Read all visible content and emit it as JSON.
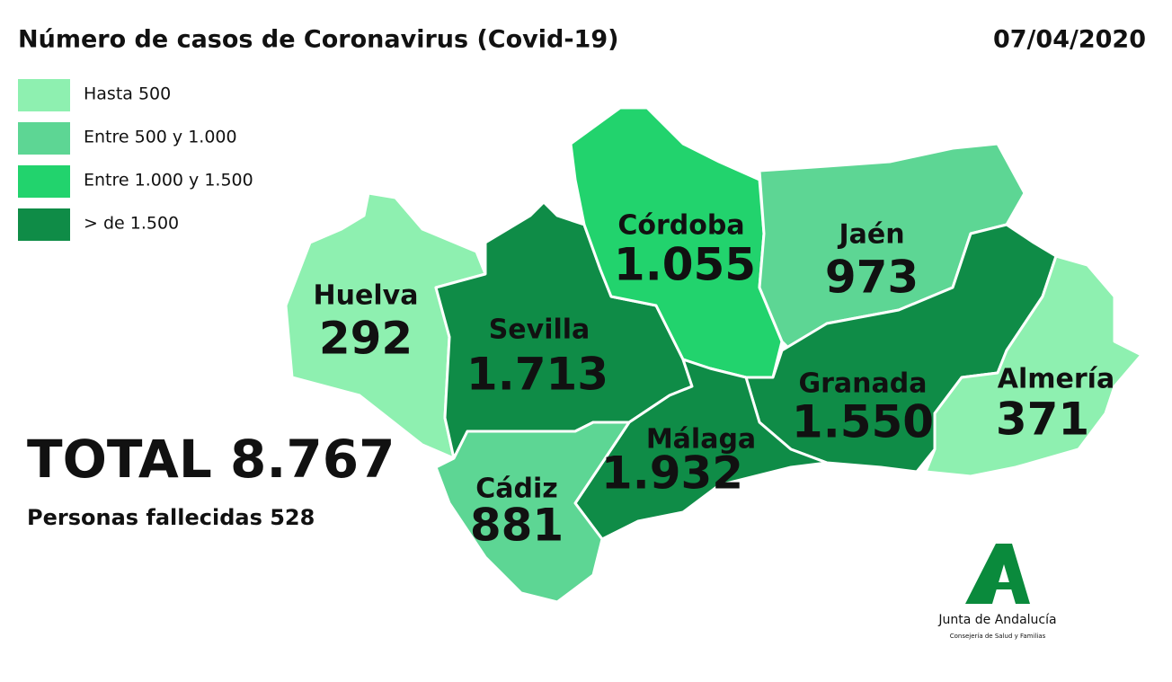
{
  "title": "Número de casos de Coronavirus (Covid-19)",
  "date": "07/04/2020",
  "legend": [
    {
      "label": "Hasta 500",
      "color": "#8ef0b0"
    },
    {
      "label": "Entre 500 y 1.000",
      "color": "#5dd694"
    },
    {
      "label": "Entre 1.000 y 1.500",
      "color": "#22d36d"
    },
    {
      "label": "> de 1.500",
      "color": "#0f8c47"
    }
  ],
  "provinces": [
    {
      "name": "Huelva",
      "value": "292",
      "color": "#8ef0b0"
    },
    {
      "name": "Sevilla",
      "value": "1.713",
      "color": "#0f8c47"
    },
    {
      "name": "Córdoba",
      "value": "1.055",
      "color": "#22d36d"
    },
    {
      "name": "Jaén",
      "value": "973",
      "color": "#5dd694"
    },
    {
      "name": "Granada",
      "value": "1.550",
      "color": "#0f8c47"
    },
    {
      "name": "Almería",
      "value": "371",
      "color": "#8ef0b0"
    },
    {
      "name": "Málaga",
      "value": "1.932",
      "color": "#0f8c47"
    },
    {
      "name": "Cádiz",
      "value": "881",
      "color": "#5dd694"
    }
  ],
  "total": "TOTAL 8.767",
  "deaths": "Personas fallecidas 528",
  "logo": {
    "name": "Junta de Andalucía",
    "subtitle": "Consejería de Salud y Familias"
  }
}
